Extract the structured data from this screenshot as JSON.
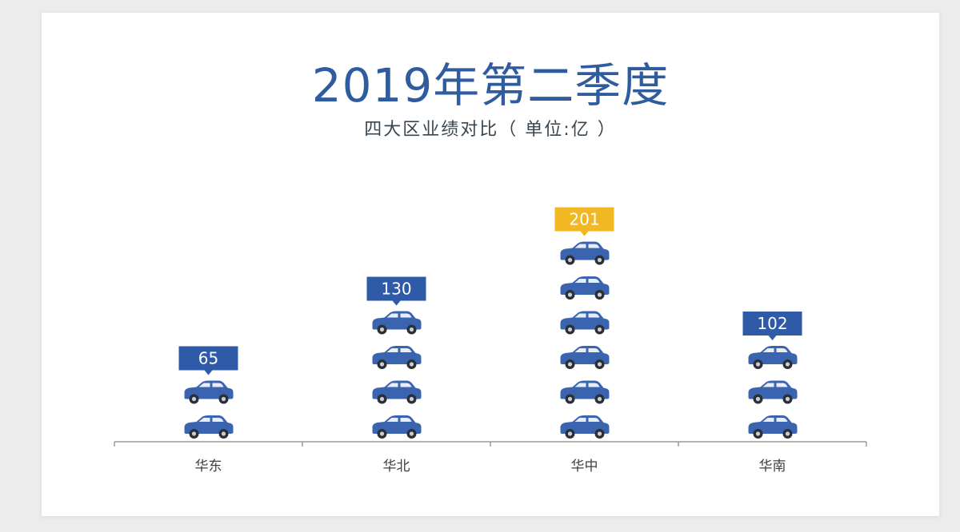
{
  "title": "2019年第二季度",
  "subtitle": "四大区业绩对比（ 单位:亿 ）",
  "colors": {
    "title": "#2f5c9e",
    "label_default": "#2e5aa7",
    "label_highlight": "#f2b824",
    "car": "#3b64b0",
    "axis": "#9a9a9a",
    "axis_label": "#404040"
  },
  "icon": "car-icon",
  "chart_data": {
    "type": "bar",
    "categories": [
      "华东",
      "华北",
      "华中",
      "华南"
    ],
    "values": [
      65,
      130,
      201,
      102
    ],
    "icon_counts": [
      2,
      4,
      6,
      3
    ],
    "highlight_index": 2
  }
}
